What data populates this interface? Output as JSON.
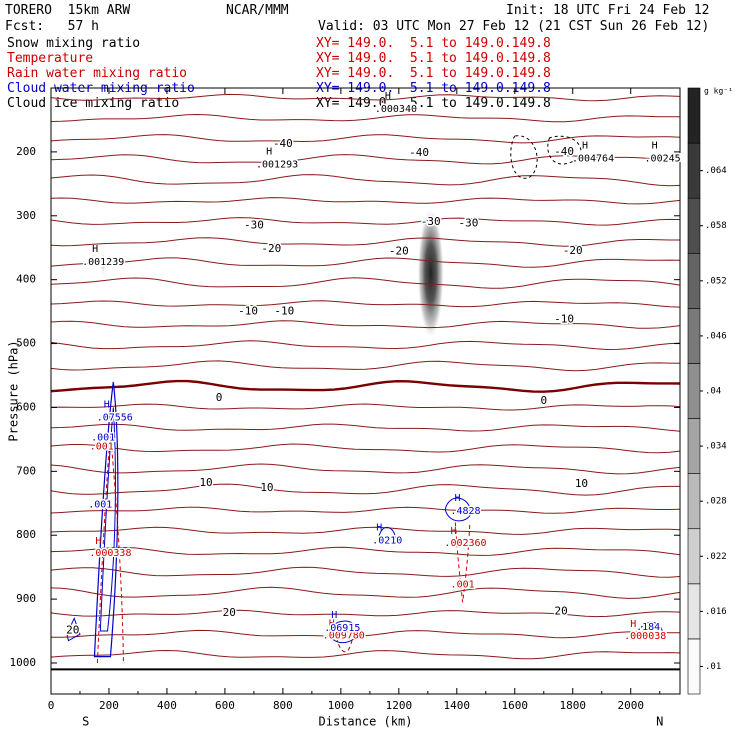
{
  "header": {
    "model": "TORERO  15km ARW",
    "org": "NCAR/MMM",
    "init": "Init: 18 UTC Fri 24 Feb 12",
    "fcst": "Fcst:   57 h",
    "valid": "Valid: 03 UTC Mon 27 Feb 12 (21 CST Sun 26 Feb 12)"
  },
  "legend": [
    {
      "label": "Snow mixing ratio",
      "xy": "XY= 149.0.  5.1 to 149.0.149.8",
      "color": "#000000"
    },
    {
      "label": "Temperature",
      "xy": "XY= 149.0.  5.1 to 149.0.149.8",
      "color": "#cc0000"
    },
    {
      "label": "Rain water mixing ratio",
      "xy": "XY= 149.0.  5.1 to 149.0.149.8",
      "color": "#cc0000"
    },
    {
      "label": "Cloud water mixing ratio",
      "xy": "XY= 149.0.  5.1 to 149.0.149.8",
      "color": "#0000cc"
    },
    {
      "label": "Cloud ice mixing ratio",
      "xy": "XY= 149.0.  5.1 to 149.0.149.8",
      "color": "#000000"
    }
  ],
  "chart_data": {
    "type": "cross-section",
    "xlabel": "Distance (km)",
    "ylabel": "Pressure (hPa)",
    "xlim": [
      0,
      2170
    ],
    "ylim": [
      1050,
      100
    ],
    "x_ticks": [
      0,
      200,
      400,
      600,
      800,
      1000,
      1200,
      1400,
      1600,
      1800,
      2000
    ],
    "y_ticks": [
      100,
      200,
      300,
      400,
      500,
      600,
      700,
      800,
      900,
      1000
    ],
    "x_ends": {
      "left": "S",
      "right": "N"
    },
    "colorbar": {
      "unit": "g kg⁻¹",
      "ticks": [
        0.01,
        0.016,
        0.022,
        0.028,
        0.034,
        0.04,
        0.046,
        0.052,
        0.058,
        0.064
      ],
      "tick_labels": [
        ".01",
        ".016",
        ".022",
        ".028",
        ".034",
        ".04",
        ".046",
        ".052",
        ".058",
        ".064"
      ]
    },
    "temperature_labels": [
      {
        "x": 800,
        "p": 188,
        "text": "-40",
        "x2": 1270,
        "p2": 202
      },
      {
        "x": 1770,
        "p": 200,
        "text": "-40"
      },
      {
        "x": 700,
        "p": 315,
        "text": "-30"
      },
      {
        "x": 1310,
        "p": 310,
        "text": "-30"
      },
      {
        "x": 1440,
        "p": 312,
        "text": "-30"
      },
      {
        "x": 760,
        "p": 352,
        "text": "-20"
      },
      {
        "x": 1200,
        "p": 356,
        "text": "-20"
      },
      {
        "x": 1800,
        "p": 355,
        "text": "-20"
      },
      {
        "x": 680,
        "p": 450,
        "text": "-10"
      },
      {
        "x": 805,
        "p": 450,
        "text": "-10"
      },
      {
        "x": 1770,
        "p": 462,
        "text": "-10"
      },
      {
        "x": 580,
        "p": 585,
        "text": "0"
      },
      {
        "x": 1700,
        "p": 590,
        "text": "0"
      },
      {
        "x": 535,
        "p": 718,
        "text": "10"
      },
      {
        "x": 745,
        "p": 726,
        "text": "10"
      },
      {
        "x": 1830,
        "p": 720,
        "text": "10"
      },
      {
        "x": 615,
        "p": 922,
        "text": "20"
      },
      {
        "x": 1760,
        "p": 919,
        "text": "20"
      },
      {
        "x": 75,
        "p": 949,
        "text": "20"
      }
    ],
    "snow_max_labels": [
      {
        "x": 1190,
        "p": 133,
        "text": ".000340",
        "color": "#000000"
      },
      {
        "x": 780,
        "p": 220,
        "text": ".001293",
        "color": "#000000"
      },
      {
        "x": 1870,
        "p": 210,
        "text": ".004764",
        "color": "#000000"
      },
      {
        "x": 2110,
        "p": 210,
        "text": ".00245",
        "color": "#000000"
      },
      {
        "x": 180,
        "p": 372,
        "text": ".001239",
        "color": "#000000"
      }
    ],
    "rain_max_labels": [
      {
        "x": 1430,
        "p": 812,
        "text": ".002360"
      },
      {
        "x": 205,
        "p": 828,
        "text": ".000338"
      },
      {
        "x": 1010,
        "p": 957,
        "text": ".009780"
      },
      {
        "x": 2050,
        "p": 958,
        "text": ".000038"
      },
      {
        "x": 1420,
        "p": 877,
        "text": ".001"
      },
      {
        "x": 175,
        "p": 661,
        "text": ".001"
      }
    ],
    "cloud_water_labels": [
      {
        "x": 220,
        "p": 616,
        "text": ".07556"
      },
      {
        "x": 1160,
        "p": 808,
        "text": ".0210"
      },
      {
        "x": 1430,
        "p": 762,
        "text": ".4828"
      },
      {
        "x": 1005,
        "p": 945,
        "text": ".06915"
      },
      {
        "x": 2060,
        "p": 944,
        "text": ".184"
      },
      {
        "x": 170,
        "p": 752,
        "text": ".001"
      },
      {
        "x": 180,
        "p": 647,
        "text": ".001"
      }
    ],
    "ice_shading": [
      {
        "x": 1310,
        "p": 390,
        "value": 0.064,
        "width_km": 90,
        "depth_hpa": 200
      },
      {
        "x": 180,
        "p": 375,
        "value": 0.012,
        "width_km": 20,
        "depth_hpa": 40
      }
    ]
  }
}
